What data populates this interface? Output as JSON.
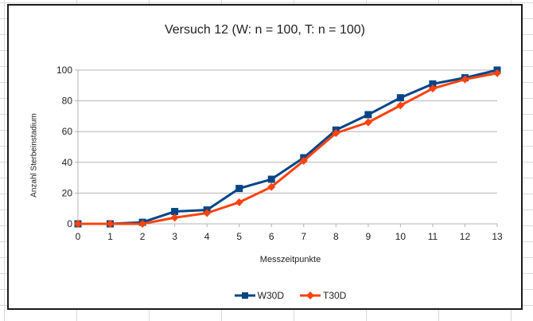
{
  "chart_data": {
    "type": "line",
    "title": "Versuch 12 (W: n = 100, T: n = 100)",
    "xlabel": "Messzeitpunkte",
    "ylabel": "Anzahl Sterbeinstadium",
    "x": [
      0,
      1,
      2,
      3,
      4,
      5,
      6,
      7,
      8,
      9,
      10,
      11,
      12,
      13
    ],
    "xlim": [
      0,
      13
    ],
    "ylim": [
      0,
      100
    ],
    "yticks": [
      0,
      20,
      40,
      60,
      80,
      100
    ],
    "grid": "horizontal",
    "legend_position": "bottom",
    "series": [
      {
        "name": "W30D",
        "color": "#004586",
        "marker": "square",
        "values": [
          0,
          0,
          1,
          8,
          9,
          23,
          29,
          43,
          61,
          71,
          82,
          91,
          95,
          100
        ]
      },
      {
        "name": "T30D",
        "color": "#FF420E",
        "marker": "diamond",
        "values": [
          0,
          0,
          0,
          4,
          7,
          14,
          24,
          41,
          59,
          66,
          77,
          88,
          94,
          98
        ]
      }
    ]
  }
}
